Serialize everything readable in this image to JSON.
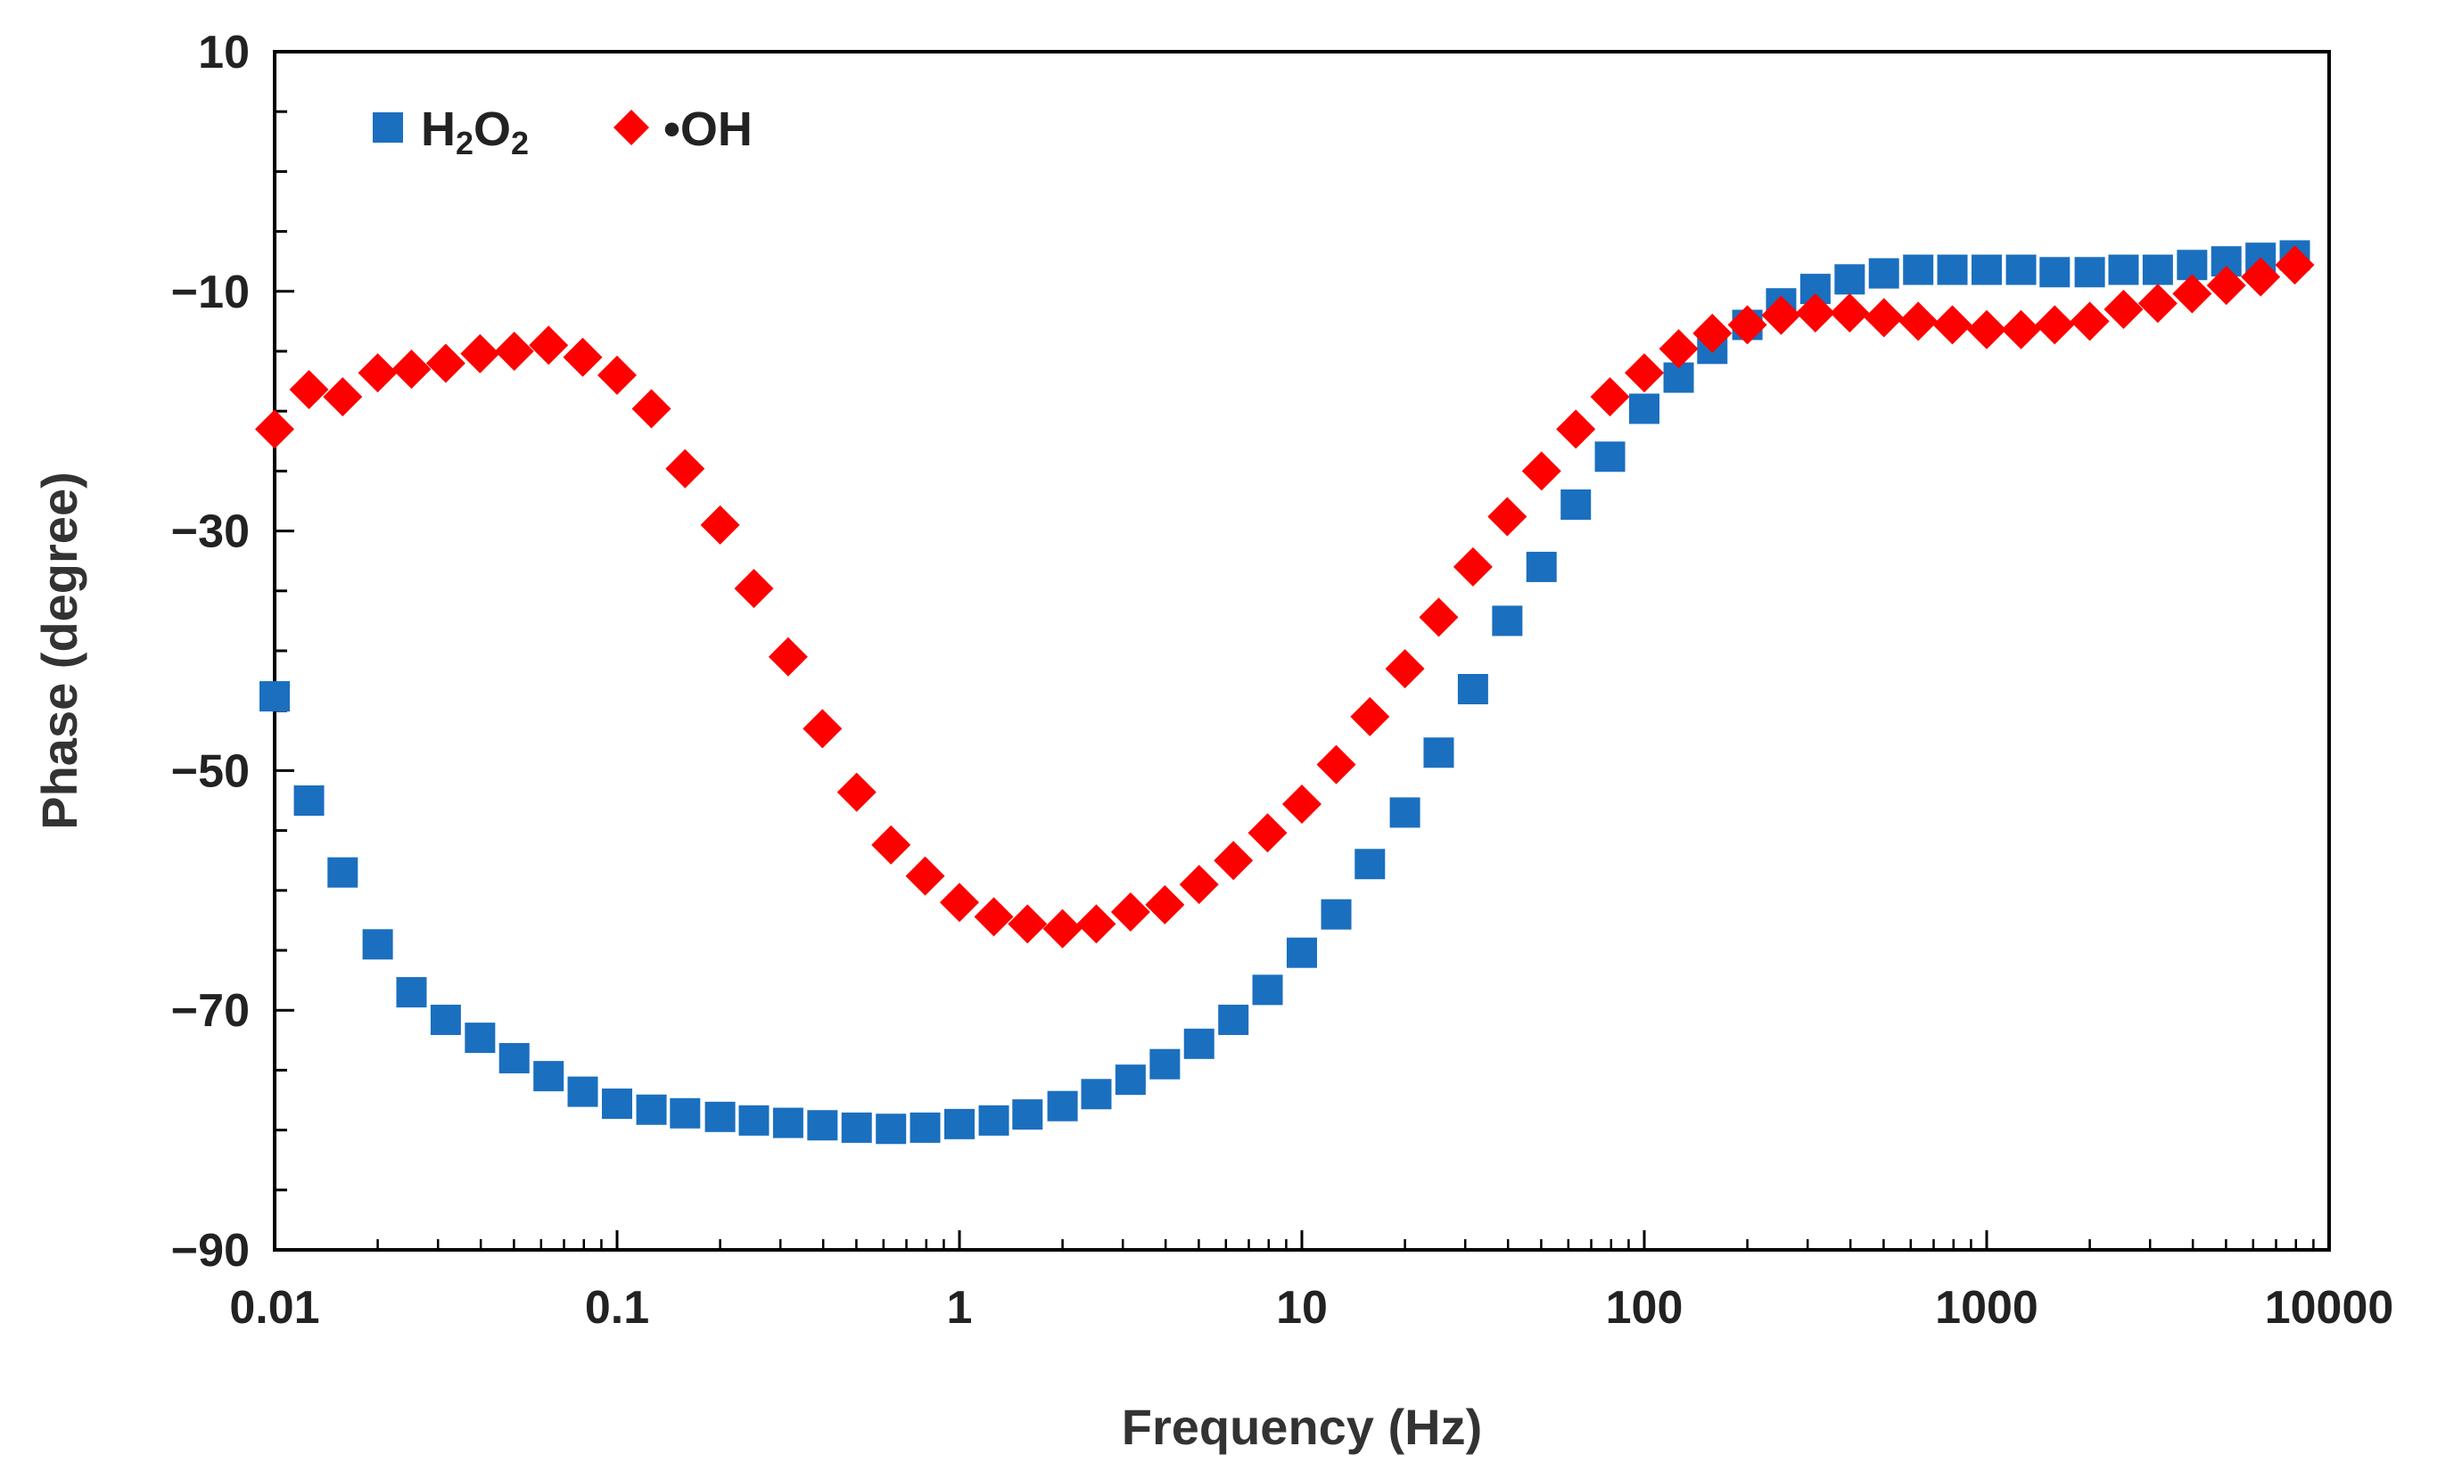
{
  "chart_data": {
    "type": "scatter",
    "title": "",
    "xlabel": "Frequency (Hz)",
    "ylabel": "Phase (degree)",
    "xscale": "log",
    "xlim": [
      0.01,
      10000
    ],
    "ylim": [
      -90,
      10
    ],
    "xticks": [
      0.01,
      0.1,
      1,
      10,
      100,
      1000,
      10000
    ],
    "xtick_labels": [
      "0.01",
      "0.1",
      "1",
      "10",
      "100",
      "1000",
      "10000"
    ],
    "yticks": [
      10,
      -10,
      -30,
      -50,
      -70,
      -90
    ],
    "ytick_labels": [
      "10",
      "−10",
      "−30",
      "−50",
      "−70",
      "−90"
    ],
    "legend_position": "top-left",
    "series": [
      {
        "name": "H2O2",
        "label_main": "H",
        "label_sub1": "2",
        "label_mid": "O",
        "label_sub2": "2",
        "marker": "square",
        "color": "#1a6fbf",
        "x": [
          0.01,
          0.0126,
          0.0158,
          0.02,
          0.0251,
          0.0316,
          0.0398,
          0.0501,
          0.0631,
          0.0794,
          0.1,
          0.126,
          0.158,
          0.2,
          0.251,
          0.316,
          0.398,
          0.501,
          0.631,
          0.794,
          1,
          1.26,
          1.58,
          2,
          2.51,
          3.16,
          3.98,
          5.01,
          6.31,
          7.94,
          10,
          12.6,
          15.8,
          20,
          25.1,
          31.6,
          39.8,
          50.1,
          63.1,
          79.4,
          100,
          126,
          158,
          200,
          251,
          316,
          398,
          501,
          631,
          794,
          1000,
          1260,
          1580,
          2000,
          2510,
          3160,
          3980,
          5010,
          6310,
          7940
        ],
        "y": [
          -43.8,
          -52.5,
          -58.5,
          -64.5,
          -68.5,
          -70.8,
          -72.3,
          -74,
          -75.5,
          -76.8,
          -77.8,
          -78.3,
          -78.6,
          -78.9,
          -79.2,
          -79.4,
          -79.6,
          -79.8,
          -79.9,
          -79.8,
          -79.5,
          -79.2,
          -78.7,
          -78,
          -77,
          -75.8,
          -74.5,
          -72.8,
          -70.8,
          -68.3,
          -65.2,
          -62,
          -57.8,
          -53.5,
          -48.5,
          -43.2,
          -37.5,
          -33,
          -27.8,
          -23.8,
          -19.8,
          -17.2,
          -14.8,
          -12.8,
          -11,
          -9.8,
          -9,
          -8.5,
          -8.2,
          -8.2,
          -8.2,
          -8.2,
          -8.4,
          -8.4,
          -8.2,
          -8.2,
          -7.8,
          -7.5,
          -7.2,
          -7
        ]
      },
      {
        "name": "•OH",
        "label_text": "•OH",
        "marker": "diamond",
        "color": "#ff0000",
        "x": [
          0.01,
          0.0126,
          0.0158,
          0.02,
          0.0251,
          0.0316,
          0.0398,
          0.0501,
          0.0631,
          0.0794,
          0.1,
          0.126,
          0.158,
          0.2,
          0.251,
          0.316,
          0.398,
          0.501,
          0.631,
          0.794,
          1,
          1.26,
          1.58,
          2,
          2.51,
          3.16,
          3.98,
          5.01,
          6.31,
          7.94,
          10,
          12.6,
          15.8,
          20,
          25.1,
          31.6,
          39.8,
          50.1,
          63.1,
          79.4,
          100,
          126,
          158,
          200,
          251,
          316,
          398,
          501,
          631,
          794,
          1000,
          1260,
          1580,
          2000,
          2510,
          3160,
          3980,
          5010,
          6310,
          7940
        ],
        "y": [
          -21.5,
          -18.2,
          -18.8,
          -16.8,
          -16.5,
          -16,
          -15.2,
          -15,
          -14.5,
          -15.5,
          -17,
          -19.8,
          -24.8,
          -29.5,
          -34.8,
          -40.5,
          -46.5,
          -51.8,
          -56.2,
          -58.8,
          -61,
          -62.2,
          -62.8,
          -63.2,
          -62.8,
          -61.8,
          -61.2,
          -59.5,
          -57.5,
          -55.2,
          -52.8,
          -49.5,
          -45.5,
          -41.5,
          -37.2,
          -33,
          -28.8,
          -25,
          -21.5,
          -18.8,
          -16.8,
          -14.8,
          -13.5,
          -12.8,
          -12,
          -11.8,
          -11.8,
          -12.2,
          -12.5,
          -12.8,
          -13.2,
          -13.2,
          -12.8,
          -12.5,
          -11.5,
          -11,
          -10.2,
          -9.5,
          -8.8,
          -7.8
        ]
      }
    ]
  }
}
